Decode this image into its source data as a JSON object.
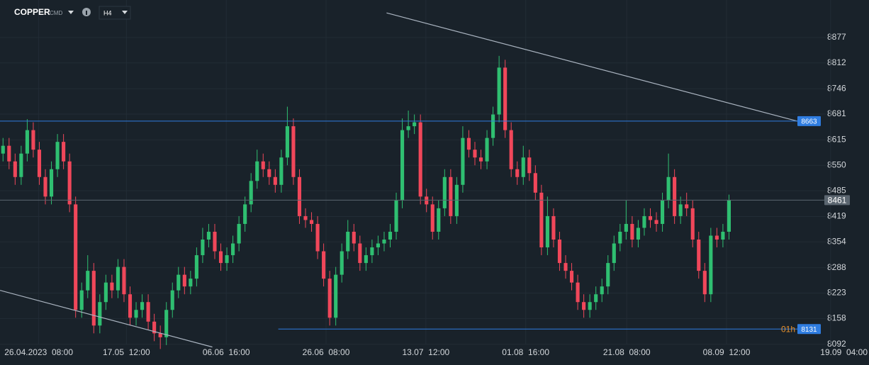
{
  "header": {
    "symbol": "COPPER",
    "class": "CMD",
    "timeframe": "H4"
  },
  "chart_data": {
    "type": "candlestick",
    "open": [
      8580,
      8600,
      8560,
      8520,
      8580,
      8640,
      8590,
      8520,
      8470,
      8540,
      8610,
      8560,
      8450,
      8180,
      8230,
      8280,
      8140,
      8200,
      8250,
      8230,
      8290,
      8220,
      8160,
      8180,
      8200,
      8150,
      8120,
      8110,
      8180,
      8230,
      8270,
      8240,
      8260,
      8320,
      8360,
      8380,
      8330,
      8300,
      8320,
      8350,
      8400,
      8450,
      8510,
      8560,
      8540,
      8520,
      8500,
      8570,
      8650,
      8520,
      8420,
      8410,
      8400,
      8330,
      8260,
      8160,
      8270,
      8330,
      8380,
      8350,
      8300,
      8320,
      8340,
      8350,
      8360,
      8380,
      8460,
      8640,
      8650,
      8660,
      8470,
      8450,
      8380,
      8440,
      8520,
      8420,
      8500,
      8620,
      8590,
      8570,
      8560,
      8620,
      8680,
      8800,
      8640,
      8540,
      8520,
      8570,
      8530,
      8480,
      8340,
      8420,
      8360,
      8300,
      8280,
      8250,
      8200,
      8180,
      8200,
      8220,
      8240,
      8300,
      8350,
      8380,
      8400,
      8360,
      8390,
      8420,
      8410,
      8400,
      8460,
      8520,
      8420,
      8450,
      8440,
      8360,
      8280,
      8220,
      8370,
      8360,
      8380
    ],
    "high": [
      8620,
      8620,
      8580,
      8600,
      8668,
      8660,
      8610,
      8540,
      8560,
      8630,
      8630,
      8580,
      8470,
      8250,
      8320,
      8300,
      8220,
      8270,
      8270,
      8310,
      8310,
      8240,
      8200,
      8220,
      8220,
      8170,
      8140,
      8200,
      8250,
      8290,
      8290,
      8280,
      8340,
      8390,
      8400,
      8400,
      8350,
      8340,
      8370,
      8420,
      8470,
      8530,
      8590,
      8580,
      8560,
      8540,
      8590,
      8700,
      8670,
      8540,
      8440,
      8430,
      8420,
      8350,
      8280,
      8290,
      8350,
      8410,
      8400,
      8370,
      8340,
      8360,
      8370,
      8380,
      8400,
      8480,
      8670,
      8690,
      8680,
      8680,
      8490,
      8470,
      8460,
      8540,
      8540,
      8520,
      8650,
      8640,
      8610,
      8590,
      8640,
      8700,
      8830,
      8820,
      8660,
      8560,
      8600,
      8590,
      8550,
      8500,
      8470,
      8440,
      8380,
      8320,
      8300,
      8270,
      8220,
      8220,
      8240,
      8260,
      8320,
      8370,
      8400,
      8460,
      8420,
      8410,
      8440,
      8440,
      8430,
      8480,
      8580,
      8540,
      8470,
      8480,
      8460,
      8380,
      8300,
      8390,
      8390,
      8400,
      8475
    ],
    "low": [
      8560,
      8540,
      8500,
      8500,
      8560,
      8570,
      8500,
      8450,
      8450,
      8520,
      8540,
      8430,
      8160,
      8160,
      8210,
      8120,
      8120,
      8180,
      8210,
      8210,
      8200,
      8140,
      8140,
      8160,
      8130,
      8100,
      8080,
      8090,
      8160,
      8210,
      8220,
      8220,
      8240,
      8300,
      8340,
      8310,
      8280,
      8280,
      8300,
      8330,
      8380,
      8430,
      8490,
      8520,
      8500,
      8480,
      8480,
      8550,
      8500,
      8400,
      8390,
      8380,
      8310,
      8240,
      8140,
      8140,
      8250,
      8310,
      8330,
      8280,
      8280,
      8300,
      8320,
      8330,
      8340,
      8360,
      8440,
      8620,
      8630,
      8450,
      8430,
      8360,
      8360,
      8420,
      8400,
      8400,
      8480,
      8570,
      8550,
      8540,
      8540,
      8600,
      8660,
      8620,
      8520,
      8500,
      8500,
      8510,
      8460,
      8320,
      8320,
      8340,
      8280,
      8260,
      8230,
      8180,
      8160,
      8160,
      8180,
      8200,
      8220,
      8280,
      8330,
      8360,
      8340,
      8340,
      8370,
      8390,
      8380,
      8380,
      8440,
      8400,
      8400,
      8420,
      8340,
      8260,
      8200,
      8200,
      8340,
      8340,
      8360
    ],
    "close": [
      8600,
      8560,
      8520,
      8580,
      8640,
      8590,
      8520,
      8470,
      8540,
      8610,
      8560,
      8450,
      8180,
      8230,
      8280,
      8140,
      8200,
      8250,
      8230,
      8290,
      8220,
      8160,
      8180,
      8200,
      8150,
      8120,
      8110,
      8180,
      8230,
      8270,
      8240,
      8260,
      8320,
      8360,
      8380,
      8330,
      8300,
      8320,
      8350,
      8400,
      8450,
      8510,
      8560,
      8540,
      8520,
      8500,
      8570,
      8650,
      8520,
      8420,
      8410,
      8400,
      8330,
      8260,
      8160,
      8270,
      8330,
      8380,
      8350,
      8300,
      8320,
      8340,
      8350,
      8360,
      8380,
      8460,
      8640,
      8650,
      8660,
      8470,
      8450,
      8380,
      8440,
      8520,
      8420,
      8500,
      8620,
      8590,
      8570,
      8560,
      8620,
      8680,
      8800,
      8640,
      8540,
      8520,
      8570,
      8530,
      8480,
      8340,
      8420,
      8360,
      8300,
      8280,
      8250,
      8200,
      8180,
      8200,
      8220,
      8240,
      8300,
      8350,
      8380,
      8400,
      8360,
      8390,
      8420,
      8410,
      8400,
      8460,
      8520,
      8420,
      8450,
      8440,
      8360,
      8280,
      8220,
      8370,
      8360,
      8380,
      8461
    ],
    "up_color": "#2fbf71",
    "down_color": "#f0475a",
    "xlim": [
      -0.5,
      136
    ],
    "xticks": [
      {
        "value": 5.9,
        "label": "26.04.2023  08:00"
      },
      {
        "value": 20.4,
        "label": "17.05  12:00"
      },
      {
        "value": 36.9,
        "label": "06.06  16:00"
      },
      {
        "value": 53.4,
        "label": "26.06  08:00"
      },
      {
        "value": 69.9,
        "label": "13.07  12:00"
      },
      {
        "value": 86.4,
        "label": "01.08  16:00"
      },
      {
        "value": 103.1,
        "label": "21.08  08:00"
      },
      {
        "value": 119.6,
        "label": "08.09  12:00"
      },
      {
        "value": 136.8,
        "label": "19.09  04:00"
      }
    ],
    "ylim": [
      8039,
      8973
    ],
    "yticks": [
      8877,
      8812,
      8746,
      8681,
      8615,
      8550,
      8485,
      8419,
      8354,
      8288,
      8223,
      8158,
      8092
    ],
    "grid": true,
    "levels": [
      {
        "value": 8663,
        "start": -0.5,
        "color": "#2f7de1"
      },
      {
        "value": 8131,
        "start": 45.5,
        "color": "#2f7de1",
        "tag": "01h"
      },
      {
        "value": 8461,
        "start": -0.5,
        "color": "#5b6670"
      }
    ],
    "trendlines": [
      {
        "points": [
          [
            63.4,
            8940
          ],
          [
            131.3,
            8663
          ]
        ],
        "color": "#aab4c0"
      },
      {
        "points": [
          [
            -0.5,
            8230
          ],
          [
            34.6,
            8085
          ]
        ],
        "color": "#aab4c0"
      }
    ]
  }
}
